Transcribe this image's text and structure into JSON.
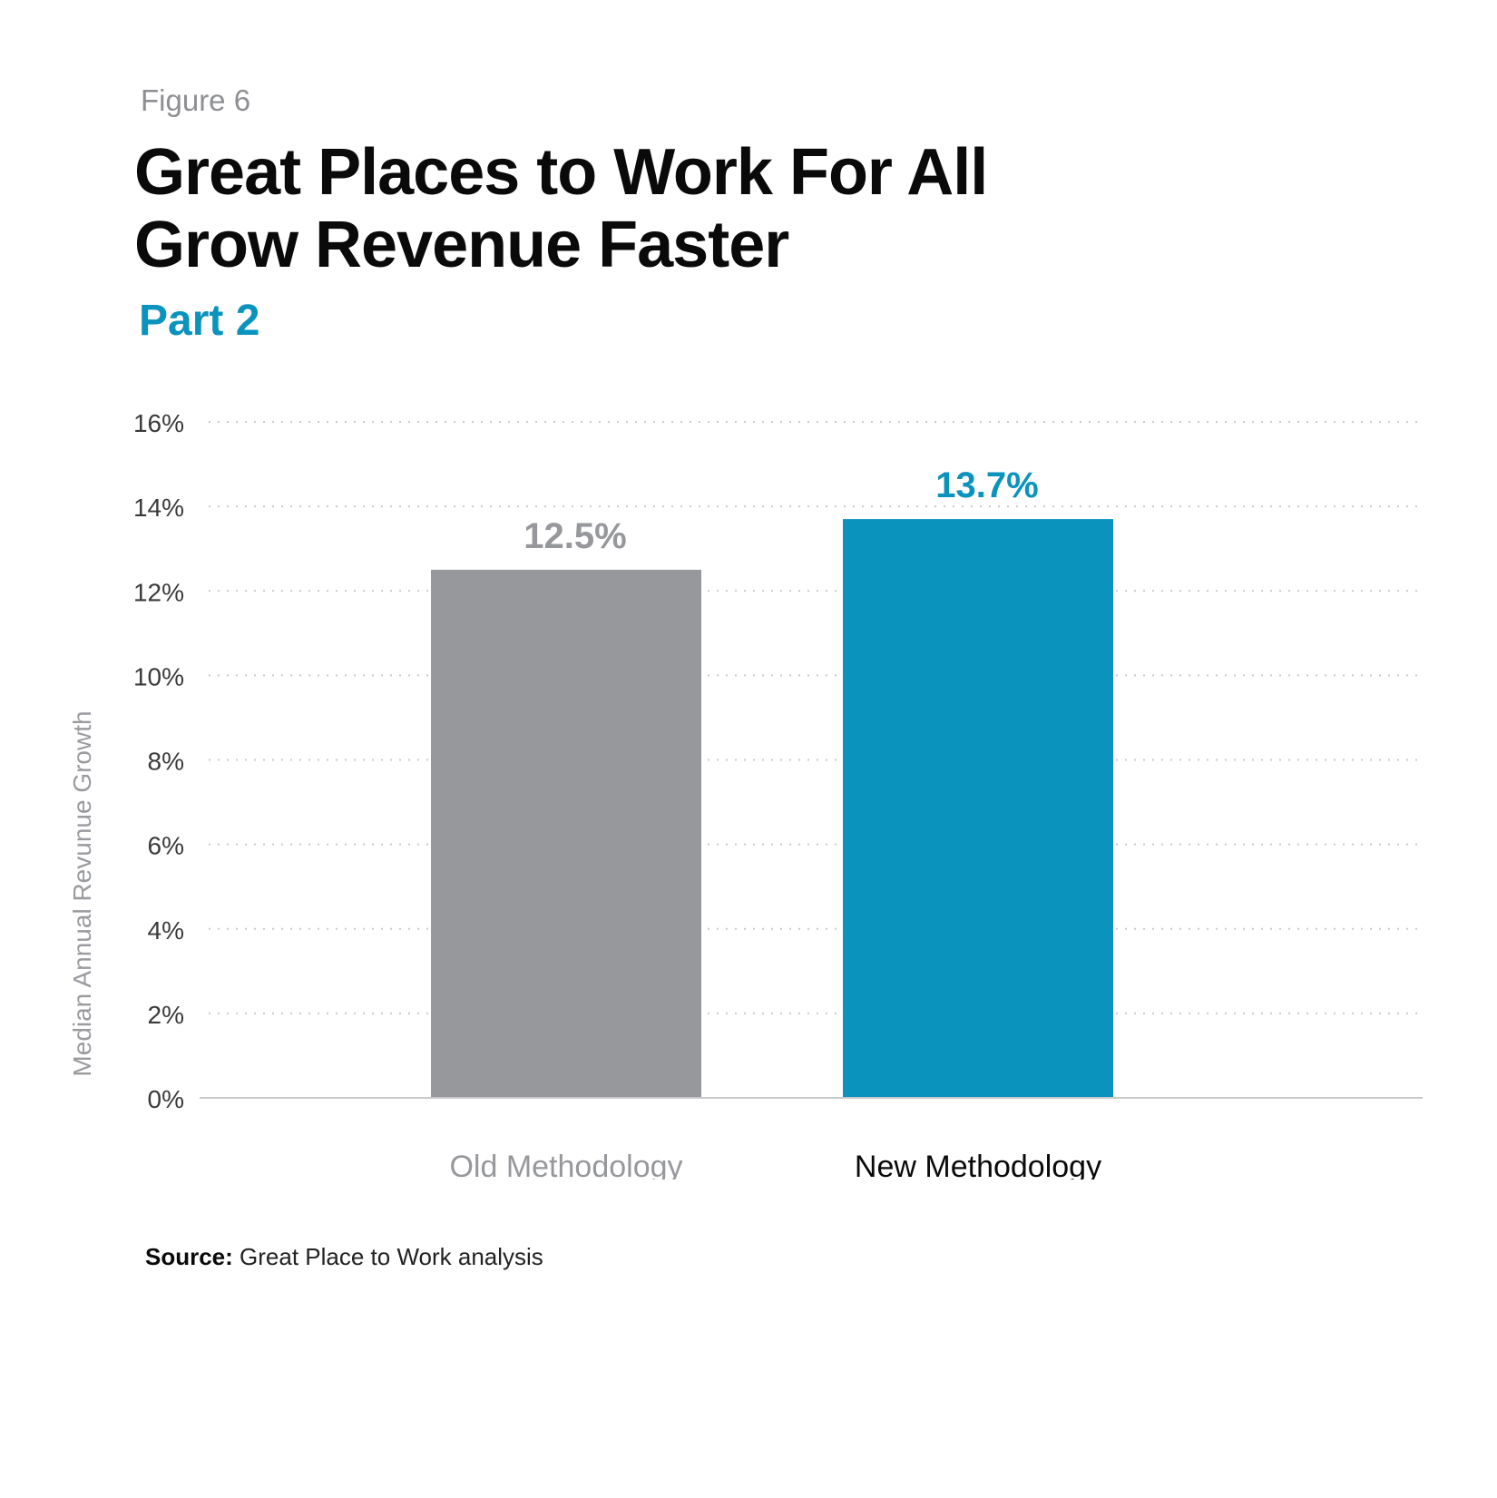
{
  "header": {
    "figure_label": "Figure 6",
    "title_line1": "Great Places to Work For All",
    "title_line2": "Grow Revenue Faster",
    "subtitle": "Part 2"
  },
  "chart_data": {
    "type": "bar",
    "categories": [
      "Old Methodology",
      "New Methodology"
    ],
    "values": [
      12.5,
      13.7
    ],
    "data_labels": [
      "12.5%",
      "13.7%"
    ],
    "bar_colors": [
      "#97989c",
      "#0a93bd"
    ],
    "category_label_colors": [
      "#97989c",
      "#0a0a0a"
    ],
    "ylabel": "Median Annual Revunue Growth",
    "ylim": [
      0,
      16
    ],
    "yticks": [
      0,
      2,
      4,
      6,
      8,
      10,
      12,
      14,
      16
    ],
    "ytick_labels": [
      "0%",
      "2%",
      "4%",
      "6%",
      "8%",
      "10%",
      "12%",
      "14%",
      "16%"
    ],
    "grid": true,
    "legend": "none"
  },
  "footer": {
    "source_label": "Source:",
    "source_text": "Great Place to Work analysis"
  }
}
